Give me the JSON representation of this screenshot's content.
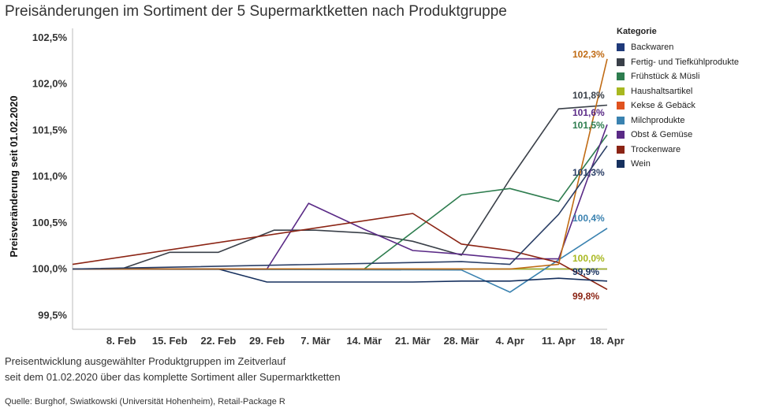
{
  "title": "Preisänderungen im Sortiment der 5 Supermarktketten nach Produktgruppe",
  "caption_line1": "Preisentwicklung ausgewählter Produktgruppen im Zeitverlauf",
  "caption_line2": "seit dem 01.02.2020 über das komplette Sortiment aller Supermarktketten",
  "source": "Quelle: Burghof, Swiatkowski (Universität Hohenheim), Retail-Package R",
  "legend_title": "Kategorie",
  "chart_data": {
    "type": "line",
    "title": "Preisänderungen im Sortiment der 5 Supermarktketten nach Produktgruppe",
    "ylabel": "Preisveränderung seit 01.02.2020",
    "xlabel": "",
    "ylim": [
      99.4,
      102.6
    ],
    "yticks": [
      99.5,
      100.0,
      100.5,
      101.0,
      101.5,
      102.0,
      102.5
    ],
    "ytick_labels": [
      "99,5%",
      "100,0%",
      "100,5%",
      "101,0%",
      "101,5%",
      "102,0%",
      "102,5%"
    ],
    "x_start": "01.02.2020",
    "x_end": "18.04.2020",
    "xticks": [
      "2020-02-08",
      "2020-02-15",
      "2020-02-22",
      "2020-02-29",
      "2020-03-07",
      "2020-03-14",
      "2020-03-21",
      "2020-03-28",
      "2020-04-04",
      "2020-04-11",
      "2020-04-18"
    ],
    "xtick_labels": [
      "8. Feb",
      "15. Feb",
      "22. Feb",
      "29. Feb",
      "7. Mär",
      "14. Mär",
      "21. Mär",
      "28. Mär",
      "4. Apr",
      "11. Apr",
      "18. Apr"
    ],
    "grid": false,
    "legend_position": "right",
    "series": [
      {
        "name": "Backwaren",
        "color": "#1f3a7a",
        "x": [
          "2020-02-01",
          "2020-02-22",
          "2020-03-28",
          "2020-04-04",
          "2020-04-11",
          "2020-04-18"
        ],
        "y": [
          100.0,
          100.0,
          100.0,
          100.0,
          100.0,
          100.0
        ],
        "end_label": ""
      },
      {
        "name": "Fertig- und Tiefkühlprodukte",
        "color": "#3a4049",
        "x": [
          "2020-02-01",
          "2020-02-08",
          "2020-02-15",
          "2020-02-22",
          "2020-03-01",
          "2020-03-07",
          "2020-03-14",
          "2020-03-21",
          "2020-03-28",
          "2020-04-04",
          "2020-04-11",
          "2020-04-18"
        ],
        "y": [
          100.0,
          100.0,
          100.18,
          100.18,
          100.42,
          100.42,
          100.39,
          100.3,
          100.15,
          100.97,
          101.73,
          101.77
        ],
        "end_label": "101,8%"
      },
      {
        "name": "Frühstück & Müsli",
        "color": "#2e7d4f",
        "x": [
          "2020-02-01",
          "2020-03-14",
          "2020-03-21",
          "2020-03-28",
          "2020-04-04",
          "2020-04-11",
          "2020-04-18"
        ],
        "y": [
          100.0,
          100.0,
          100.4,
          100.8,
          100.87,
          100.73,
          101.45
        ],
        "end_label": "101,5%"
      },
      {
        "name": "Haushaltsartikel",
        "color": "#a8b820",
        "x": [
          "2020-02-01",
          "2020-04-04",
          "2020-04-11",
          "2020-04-18"
        ],
        "y": [
          100.0,
          100.0,
          100.0,
          100.0
        ],
        "end_label": "100,0%"
      },
      {
        "name": "Kekse & Gebäck",
        "color": "#e0521f",
        "x": [
          "2020-02-01",
          "2020-03-14",
          "2020-03-21",
          "2020-03-28"
        ],
        "y": [
          100.0,
          100.0,
          100.0,
          100.0
        ],
        "end_label": ""
      },
      {
        "name": "Milchprodukte",
        "color": "#3a82b0",
        "x": [
          "2020-02-01",
          "2020-03-28",
          "2020-04-04",
          "2020-04-11",
          "2020-04-18"
        ],
        "y": [
          100.0,
          99.99,
          99.75,
          100.1,
          100.44
        ],
        "end_label": "100,4%"
      },
      {
        "name": "Obst & Gemüse",
        "color": "#5a2a86",
        "x": [
          "2020-02-01",
          "2020-02-29",
          "2020-03-06",
          "2020-03-14",
          "2020-03-21",
          "2020-03-28",
          "2020-04-04",
          "2020-04-11",
          "2020-04-18"
        ],
        "y": [
          100.0,
          100.0,
          100.71,
          100.43,
          100.2,
          100.16,
          100.11,
          100.11,
          101.56
        ],
        "end_label": "101,6%"
      },
      {
        "name": "Trockenware",
        "color": "#8b2414",
        "x": [
          "2020-02-01",
          "2020-03-21",
          "2020-03-28",
          "2020-04-04",
          "2020-04-11",
          "2020-04-18"
        ],
        "y": [
          100.05,
          100.6,
          100.27,
          100.2,
          100.07,
          99.78
        ],
        "end_label": "99,8%"
      },
      {
        "name": "Wein",
        "color": "#16305e",
        "x": [
          "2020-02-01",
          "2020-02-22",
          "2020-02-29",
          "2020-03-07",
          "2020-03-14",
          "2020-03-21",
          "2020-03-28",
          "2020-04-04",
          "2020-04-11",
          "2020-04-18"
        ],
        "y": [
          100.0,
          100.0,
          99.86,
          99.86,
          99.86,
          99.86,
          99.87,
          99.87,
          99.9,
          99.87
        ],
        "end_label": "99,9%"
      },
      {
        "name": "",
        "color": "#c06b14",
        "legend": false,
        "x": [
          "2020-02-01",
          "2020-04-04",
          "2020-04-11",
          "2020-04-18"
        ],
        "y": [
          100.0,
          100.0,
          100.05,
          102.27
        ],
        "end_label": "102,3%"
      },
      {
        "name": "",
        "color": "#2b3f66",
        "legend": false,
        "x": [
          "2020-02-01",
          "2020-03-28",
          "2020-04-04",
          "2020-04-11",
          "2020-04-18"
        ],
        "y": [
          100.0,
          100.08,
          100.05,
          100.59,
          101.33
        ],
        "end_label": "101,3%"
      }
    ]
  }
}
